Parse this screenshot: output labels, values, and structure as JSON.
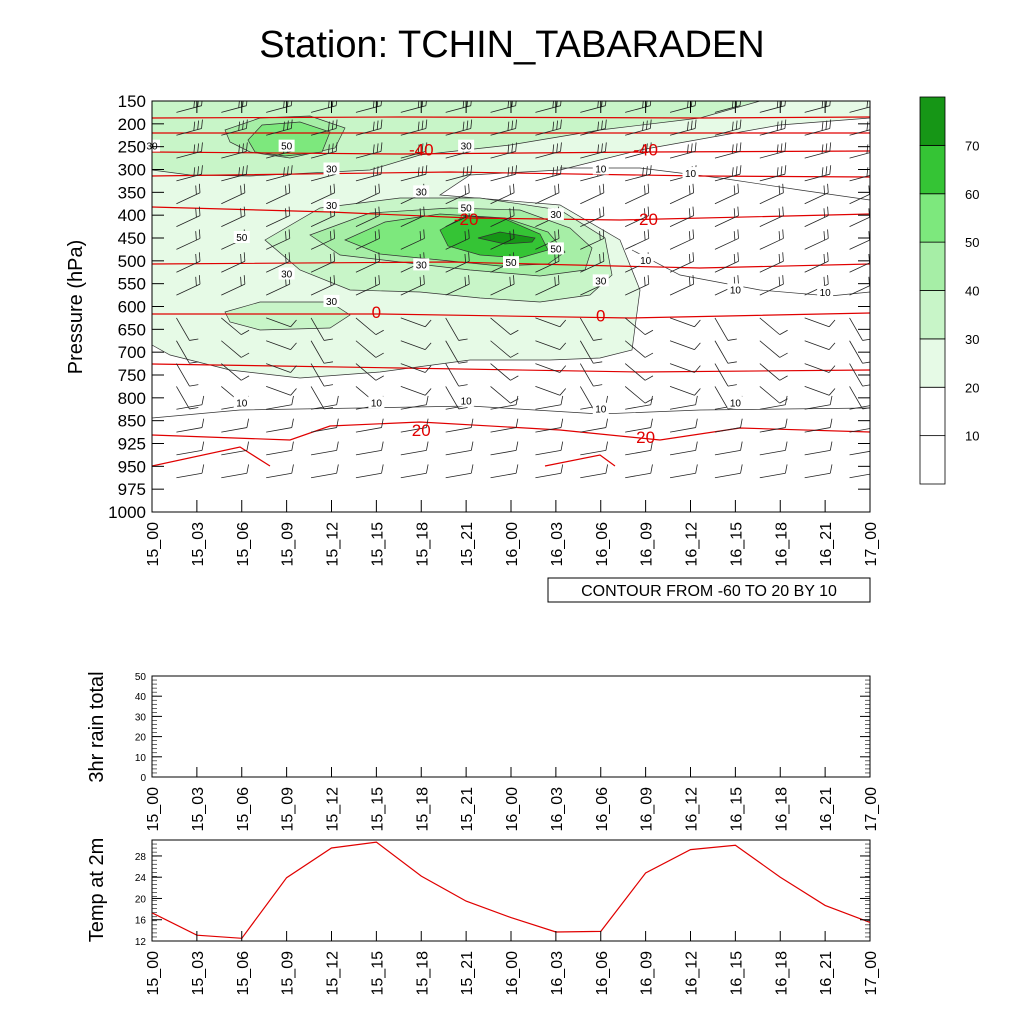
{
  "title": "Station: TCHIN_TABARADEN",
  "contour_note": "CONTOUR FROM -60 TO 20 BY 10",
  "colors": {
    "temp_line": "#e00000",
    "contour_line": "#333333",
    "barb": "#222222",
    "shade": [
      "#ffffff",
      "#ffffff",
      "#e6fae6",
      "#c8f5c8",
      "#a6eea6",
      "#7de87d",
      "#35c435",
      "#169616"
    ]
  },
  "chart_data": [
    {
      "type": "heatmap",
      "name": "upper-air",
      "ylabel": "Pressure (hPa)",
      "xlabel": "",
      "x_categories": [
        "15_00",
        "15_03",
        "15_06",
        "15_09",
        "15_12",
        "15_15",
        "15_18",
        "15_21",
        "16_00",
        "16_03",
        "16_06",
        "16_09",
        "16_12",
        "16_15",
        "16_18",
        "16_21",
        "17_00"
      ],
      "pressure_levels": [
        150,
        200,
        250,
        300,
        350,
        400,
        450,
        500,
        550,
        600,
        650,
        700,
        750,
        800,
        850,
        925,
        950,
        975,
        1000
      ],
      "humidity_contour_labels": [
        {
          "text": "50",
          "x": "15_09",
          "p": 250
        },
        {
          "text": "30",
          "x": "15_00",
          "p": 250
        },
        {
          "text": "30",
          "x": "15_21",
          "p": 250
        },
        {
          "text": "30",
          "x": "15_12",
          "p": 300
        },
        {
          "text": "10",
          "x": "16_06",
          "p": 300
        },
        {
          "text": "10",
          "x": "16_12",
          "p": 310
        },
        {
          "text": "30",
          "x": "15_12",
          "p": 380
        },
        {
          "text": "30",
          "x": "15_18",
          "p": 350
        },
        {
          "text": "50",
          "x": "15_21",
          "p": 385
        },
        {
          "text": "30",
          "x": "16_03",
          "p": 400
        },
        {
          "text": "50",
          "x": "15_06",
          "p": 450
        },
        {
          "text": "50",
          "x": "16_03",
          "p": 475
        },
        {
          "text": "30",
          "x": "15_18",
          "p": 510
        },
        {
          "text": "50",
          "x": "16_00",
          "p": 505
        },
        {
          "text": "10",
          "x": "16_09",
          "p": 500
        },
        {
          "text": "30",
          "x": "15_09",
          "p": 530
        },
        {
          "text": "30",
          "x": "16_06",
          "p": 545
        },
        {
          "text": "30",
          "x": "15_12",
          "p": 590
        },
        {
          "text": "10",
          "x": "16_15",
          "p": 565
        },
        {
          "text": "10",
          "x": "16_21",
          "p": 570
        },
        {
          "text": "10",
          "x": "15_06",
          "p": 812
        },
        {
          "text": "10",
          "x": "15_15",
          "p": 812
        },
        {
          "text": "10",
          "x": "15_21",
          "p": 808
        },
        {
          "text": "10",
          "x": "16_06",
          "p": 826
        },
        {
          "text": "10",
          "x": "16_15",
          "p": 812
        }
      ],
      "temperature_contour_labels": [
        {
          "text": "-40",
          "x": "15_18",
          "p": 256
        },
        {
          "text": "-40",
          "x": "16_09",
          "p": 256
        },
        {
          "text": "-20",
          "x": "15_21",
          "p": 408
        },
        {
          "text": "-20",
          "x": "16_09",
          "p": 408
        },
        {
          "text": "0",
          "x": "15_15",
          "p": 612
        },
        {
          "text": "0",
          "x": "16_06",
          "p": 620
        },
        {
          "text": "20",
          "x": "15_18",
          "p": 880
        },
        {
          "text": "20",
          "x": "16_09",
          "p": 903
        }
      ],
      "colorbar": {
        "levels": [
          10,
          20,
          30,
          40,
          50,
          60,
          70
        ],
        "labels": [
          "10",
          "20",
          "30",
          "40",
          "50",
          "60",
          "70"
        ]
      }
    },
    {
      "type": "bar",
      "name": "rain",
      "ylabel": "3hr rain total",
      "ylim": [
        0,
        50
      ],
      "yticks": [
        "0",
        "10",
        "20",
        "30",
        "40",
        "50"
      ],
      "x_categories": [
        "15_00",
        "15_03",
        "15_06",
        "15_09",
        "15_12",
        "15_15",
        "15_18",
        "15_21",
        "16_00",
        "16_03",
        "16_06",
        "16_09",
        "16_12",
        "16_15",
        "16_18",
        "16_21",
        "17_00"
      ],
      "values": [
        0,
        0,
        0,
        0,
        0,
        0,
        0,
        0,
        0,
        0,
        0,
        0,
        0,
        0,
        0,
        0,
        0
      ]
    },
    {
      "type": "line",
      "name": "temp2m",
      "ylabel": "Temp at 2m",
      "ylim": [
        12,
        31
      ],
      "yticks": [
        "12",
        "16",
        "20",
        "24",
        "28"
      ],
      "x_categories": [
        "15_00",
        "15_03",
        "15_06",
        "15_09",
        "15_12",
        "15_15",
        "15_18",
        "15_21",
        "16_00",
        "16_03",
        "16_06",
        "16_09",
        "16_12",
        "16_15",
        "16_18",
        "16_21",
        "17_00"
      ],
      "values": [
        17.3,
        13.1,
        12.5,
        23.9,
        29.5,
        30.6,
        24.2,
        19.5,
        16.4,
        13.7,
        13.8,
        24.8,
        29.2,
        30.0,
        24.0,
        18.7,
        15.5
      ]
    }
  ]
}
